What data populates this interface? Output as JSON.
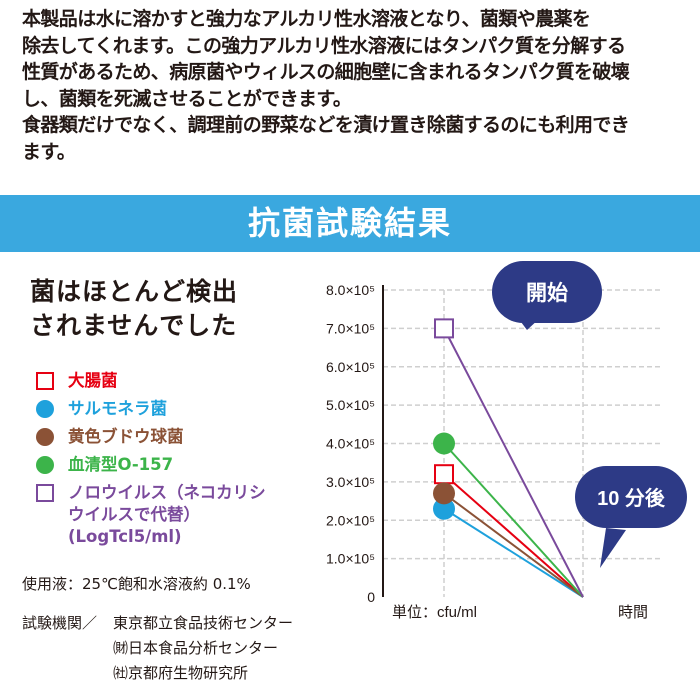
{
  "intro": {
    "lines": [
      "本製品は水に溶かすと強力なアルカリ性水溶液となり、菌類や農薬を",
      "除去してくれます。この強力アルカリ性水溶液にはタンパク質を分解する",
      "性質があるため、病原菌やウィルスの細胞壁に含まれるタンパク質を破壊",
      "し、菌類を死滅させることができます。",
      "食器類だけでなく、調理前の野菜などを漬け置き除菌するのにも利用でき",
      "ます。"
    ]
  },
  "banner": {
    "title": "抗菌試験結果"
  },
  "headline": {
    "line1": "菌はほとんど検出",
    "line2": "されませんでした"
  },
  "legend": [
    {
      "label": "大腸菌",
      "color": "#e60012",
      "shape": "square"
    },
    {
      "label": "サルモネラ菌",
      "color": "#1ea1dc",
      "shape": "circle"
    },
    {
      "label": "黄色ブドウ球菌",
      "color": "#8b5236",
      "shape": "circle"
    },
    {
      "label": "血清型O-157",
      "color": "#3cb44a",
      "shape": "circle"
    },
    {
      "label": "ノロウイルス（ネコカリシ\nウイルスで代替）\n(LogTcl5/ml)",
      "color": "#7a4a9c",
      "shape": "square"
    }
  ],
  "footnotes": {
    "solution": "使用液：25℃飽和水溶液約 0.1%",
    "org_label": "試験機関／",
    "org1": "東京都立食品技術センター",
    "org2": "㈶日本食品分析センター",
    "org3": "㈳京都府生物研究所"
  },
  "chart_data": {
    "type": "line",
    "y_tick_labels": [
      "0",
      "1.0×10⁵",
      "2.0×10⁵",
      "3.0×10⁵",
      "4.0×10⁵",
      "5.0×10⁵",
      "6.0×10⁵",
      "7.0×10⁵",
      "8.0×10⁵"
    ],
    "ylim": [
      0,
      800000
    ],
    "x_categories": [
      "開始",
      "10 分後"
    ],
    "xlabel": "時間",
    "unit_label": "単位：cfu/ml",
    "grid": true,
    "series": [
      {
        "name": "大腸菌",
        "color": "#e60012",
        "marker": "square",
        "values": [
          320000,
          0
        ]
      },
      {
        "name": "サルモネラ菌",
        "color": "#1ea1dc",
        "marker": "circle",
        "values": [
          230000,
          0
        ]
      },
      {
        "name": "黄色ブドウ球菌",
        "color": "#8b5236",
        "marker": "circle",
        "values": [
          270000,
          0
        ]
      },
      {
        "name": "血清型O-157",
        "color": "#3cb44a",
        "marker": "circle",
        "values": [
          400000,
          0
        ]
      },
      {
        "name": "ノロウイルス（ネコカリシウイルスで代替）",
        "color": "#7a4a9c",
        "marker": "square",
        "values": [
          700000,
          0
        ]
      }
    ],
    "callouts": {
      "start": "開始",
      "after": "10 分後"
    },
    "callout_color": "#2d3a86"
  }
}
